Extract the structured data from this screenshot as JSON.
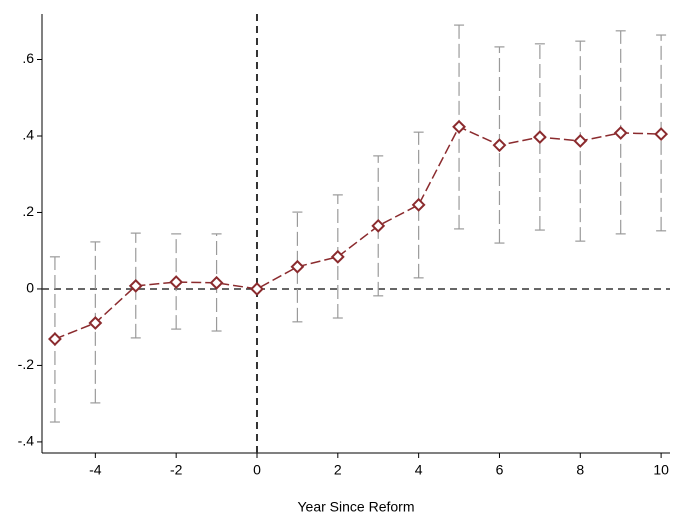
{
  "chart_data": {
    "type": "line",
    "x_label": "Year Since Reform",
    "x": [
      -5,
      -4,
      -3,
      -2,
      -1,
      0,
      1,
      2,
      3,
      4,
      5,
      6,
      7,
      8,
      9,
      10
    ],
    "values": [
      -0.131,
      -0.089,
      0.008,
      0.018,
      0.016,
      0,
      0.058,
      0.084,
      0.165,
      0.22,
      0.424,
      0.376,
      0.397,
      0.387,
      0.408,
      0.405
    ],
    "ci_low": [
      -0.348,
      -0.298,
      -0.128,
      -0.105,
      -0.11,
      null,
      -0.086,
      -0.076,
      -0.018,
      0.029,
      0.157,
      0.12,
      0.154,
      0.125,
      0.144,
      0.152
    ],
    "ci_high": [
      0.084,
      0.123,
      0.146,
      0.144,
      0.144,
      null,
      0.201,
      0.246,
      0.348,
      0.41,
      0.69,
      0.633,
      0.641,
      0.648,
      0.675,
      0.664
    ],
    "color": "#8b2b2e",
    "ci_color": "#9a9a9a",
    "xlim": [
      -5.32,
      10.22
    ],
    "ylim": [
      -0.429,
      0.719
    ],
    "xticks": [
      -4,
      -2,
      0,
      2,
      4,
      6,
      8,
      10
    ],
    "yticks": [
      {
        "value": -0.4,
        "label": "-.4"
      },
      {
        "value": -0.2,
        "label": "-.2"
      },
      0,
      {
        "value": 0.2,
        "label": ".2"
      },
      {
        "value": 0.4,
        "label": ".4"
      },
      {
        "value": 0.6,
        "label": ".6"
      }
    ],
    "vline": 0,
    "hline": 0
  }
}
